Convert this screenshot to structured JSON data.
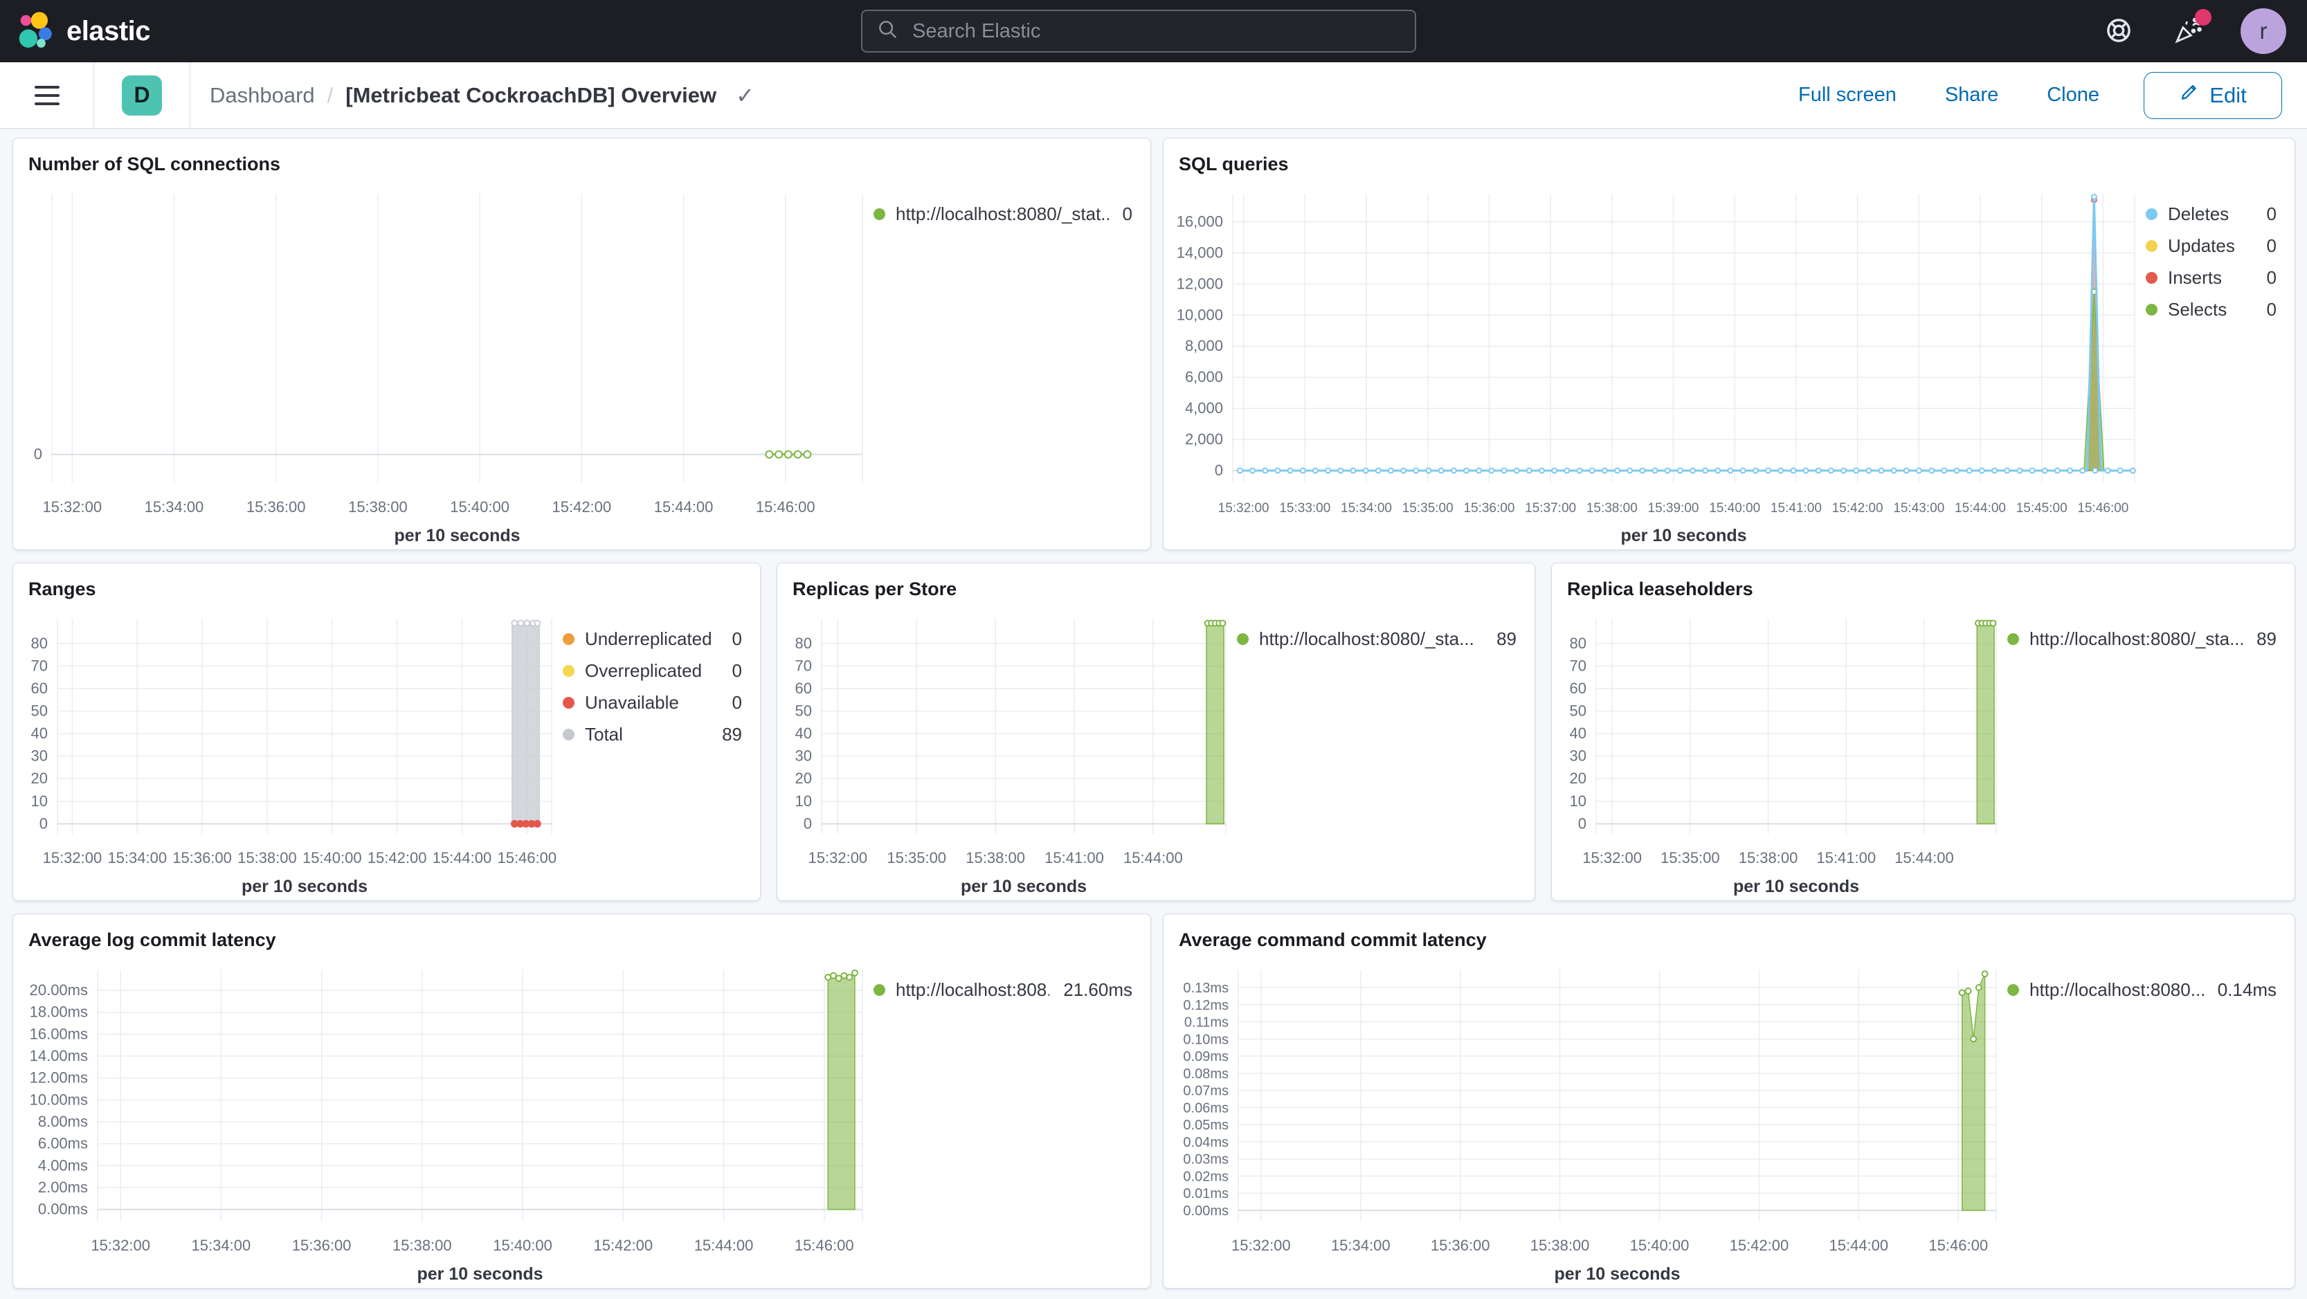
{
  "header": {
    "brand": "elastic",
    "search_placeholder": "Search Elastic",
    "avatar_initial": "r"
  },
  "toolbar": {
    "app_badge": "D",
    "breadcrumb_parent": "Dashboard",
    "breadcrumb_separator": "/",
    "title": "[Metricbeat CockroachDB] Overview",
    "title_check": "✓",
    "full_screen": "Full screen",
    "share": "Share",
    "clone": "Clone",
    "edit": "Edit"
  },
  "colors": {
    "accent_blue": "#006BB4",
    "header_bg": "#1D1E24",
    "panel_border": "#D3DAE6",
    "page_bg": "#F5F7FA",
    "badge_teal": "#4EC3B2",
    "notification_pink": "#E0366B",
    "avatar_purple": "#BBA3DD",
    "series_green": "#7DB642",
    "series_blue": "#7DC9F0",
    "series_yellow": "#F1D34F",
    "series_red": "#E25B4C",
    "series_orange": "#EF9E3D",
    "series_gray": "#C9CDD3"
  },
  "chart_data": [
    {
      "id": "sql-connections",
      "type": "line",
      "title": "Number of SQL connections",
      "xlabel": "per 10 seconds",
      "x_ticks": [
        "15:32:00",
        "15:34:00",
        "15:36:00",
        "15:38:00",
        "15:40:00",
        "15:42:00",
        "15:44:00",
        "15:46:00"
      ],
      "x_tick_span": [
        0.025,
        0.905
      ],
      "y_ticks": [
        {
          "v": 0,
          "label": "0"
        }
      ],
      "ylim": [
        -0.11,
        1
      ],
      "h_grid": false,
      "margin_left": 56,
      "legend_position": "right",
      "legend": [
        {
          "label": "http://localhost:8080/_stat...",
          "value": "0",
          "color": "#7DB642"
        }
      ],
      "series": [
        {
          "name": "http://localhost:8080/_stat...",
          "kind": "line",
          "color": "#7DB642",
          "width": 2.5,
          "points": [
            [
              0.885,
              0
            ],
            [
              0.932,
              0
            ]
          ],
          "marker_range": [
            0.885,
            0.932,
            5
          ],
          "marker_r": 5
        }
      ]
    },
    {
      "id": "sql-queries",
      "type": "line",
      "title": "SQL queries",
      "xlabel": "per 10 seconds",
      "x_ticks": [
        "15:32:00",
        "15:33:00",
        "15:34:00",
        "15:35:00",
        "15:36:00",
        "15:37:00",
        "15:38:00",
        "15:39:00",
        "15:40:00",
        "15:41:00",
        "15:42:00",
        "15:43:00",
        "15:44:00",
        "15:45:00",
        "15:46:00"
      ],
      "x_tick_span": [
        0.012,
        0.965
      ],
      "x_tick_font": 19,
      "y_ticks": [
        {
          "v": 0,
          "label": "0"
        },
        {
          "v": 2000,
          "label": "2,000"
        },
        {
          "v": 4000,
          "label": "4,000"
        },
        {
          "v": 6000,
          "label": "6,000"
        },
        {
          "v": 8000,
          "label": "8,000"
        },
        {
          "v": 10000,
          "label": "10,000"
        },
        {
          "v": 12000,
          "label": "12,000"
        },
        {
          "v": 14000,
          "label": "14,000"
        },
        {
          "v": 16000,
          "label": "16,000"
        }
      ],
      "ylim": [
        -800,
        17800
      ],
      "h_grid": true,
      "margin_left": 100,
      "legend_position": "right",
      "legend": [
        {
          "label": "Deletes",
          "value": "0",
          "color": "#7DC9F0"
        },
        {
          "label": "Updates",
          "value": "0",
          "color": "#F1D34F"
        },
        {
          "label": "Inserts",
          "value": "0",
          "color": "#E25B4C"
        },
        {
          "label": "Selects",
          "value": "0",
          "color": "#7DB642"
        }
      ],
      "series": [
        {
          "name": "Updates",
          "kind": "line",
          "color": "#F1D34F",
          "width": 2,
          "points": [
            [
              0.008,
              0
            ],
            [
              0.998,
              0
            ]
          ]
        },
        {
          "name": "Inserts",
          "kind": "area",
          "color": "#E25B4C",
          "fill_opacity": 0.5,
          "points": [
            [
              0.9475,
              0
            ],
            [
              0.955,
              17400
            ],
            [
              0.9625,
              0
            ]
          ],
          "marker_points": [
            [
              0.955,
              17400
            ]
          ],
          "marker_r": 3.5
        },
        {
          "name": "Selects",
          "kind": "area",
          "color": "#7DB642",
          "fill_opacity": 0.6,
          "points": [
            [
              0.944,
              0
            ],
            [
              0.955,
              11500
            ],
            [
              0.966,
              0
            ]
          ],
          "marker_points": [
            [
              0.955,
              11500
            ]
          ],
          "marker_r": 4
        },
        {
          "name": "Deletes",
          "kind": "line",
          "color": "#7DC9F0",
          "width": 3,
          "points": [
            [
              0.008,
              0
            ],
            [
              0.9475,
              0
            ],
            [
              0.955,
              17600
            ],
            [
              0.9625,
              0
            ],
            [
              0.998,
              0
            ]
          ],
          "marker_range": [
            0.008,
            0.998,
            72
          ],
          "marker_points": [
            [
              0.955,
              17600
            ]
          ],
          "marker_r": 3.5
        }
      ]
    },
    {
      "id": "ranges",
      "type": "line",
      "title": "Ranges",
      "xlabel": "per 10 seconds",
      "x_ticks": [
        "15:32:00",
        "15:34:00",
        "15:36:00",
        "15:38:00",
        "15:40:00",
        "15:42:00",
        "15:44:00",
        "15:46:00"
      ],
      "x_tick_span": [
        0.03,
        0.95
      ],
      "y_ticks": [
        {
          "v": 0,
          "label": "0"
        },
        {
          "v": 10,
          "label": "10"
        },
        {
          "v": 20,
          "label": "20"
        },
        {
          "v": 30,
          "label": "30"
        },
        {
          "v": 40,
          "label": "40"
        },
        {
          "v": 50,
          "label": "50"
        },
        {
          "v": 60,
          "label": "60"
        },
        {
          "v": 70,
          "label": "70"
        },
        {
          "v": 80,
          "label": "80"
        }
      ],
      "ylim": [
        -4.5,
        91
      ],
      "h_grid": true,
      "margin_left": 64,
      "legend_position": "right",
      "legend": [
        {
          "label": "Underreplicated",
          "value": "0",
          "color": "#EF9E3D"
        },
        {
          "label": "Overreplicated",
          "value": "0",
          "color": "#F2D64B"
        },
        {
          "label": "Unavailable",
          "value": "0",
          "color": "#E4584B"
        },
        {
          "label": "Total",
          "value": "89",
          "color": "#C6CAD0"
        }
      ],
      "series": [
        {
          "name": "Total",
          "kind": "area",
          "color": "#C9CDD3",
          "fill_opacity": 0.8,
          "points": [
            [
              0.92,
              89
            ],
            [
              0.975,
              89
            ]
          ],
          "marker_points": [
            [
              0.925,
              89
            ],
            [
              0.9375,
              89
            ],
            [
              0.95,
              89
            ],
            [
              0.9625,
              89
            ],
            [
              0.971,
              89
            ]
          ],
          "marker_r": 4
        },
        {
          "name": "Unavailable",
          "kind": "dots",
          "color": "#E4584B",
          "r": 5.5,
          "points": [
            [
              0.925,
              0
            ],
            [
              0.9365,
              0
            ],
            [
              0.948,
              0
            ],
            [
              0.9595,
              0
            ],
            [
              0.971,
              0
            ]
          ]
        }
      ]
    },
    {
      "id": "replicas-per-store",
      "type": "line",
      "title": "Replicas per Store",
      "xlabel": "per 10 seconds",
      "x_ticks": [
        "15:32:00",
        "15:35:00",
        "15:38:00",
        "15:41:00",
        "15:44:00"
      ],
      "x_tick_span": [
        0.04,
        0.82
      ],
      "y_ticks": [
        {
          "v": 0,
          "label": "0"
        },
        {
          "v": 10,
          "label": "10"
        },
        {
          "v": 20,
          "label": "20"
        },
        {
          "v": 30,
          "label": "30"
        },
        {
          "v": 40,
          "label": "40"
        },
        {
          "v": 50,
          "label": "50"
        },
        {
          "v": 60,
          "label": "60"
        },
        {
          "v": 70,
          "label": "70"
        },
        {
          "v": 80,
          "label": "80"
        }
      ],
      "ylim": [
        -4.5,
        91
      ],
      "h_grid": true,
      "margin_left": 64,
      "legend_position": "right",
      "legend": [
        {
          "label": "http://localhost:8080/_sta...",
          "value": "89",
          "color": "#7DB642"
        }
      ],
      "series": [
        {
          "name": "http://localhost:8080/_sta...",
          "kind": "area",
          "color": "#7DB642",
          "fill_opacity": 0.55,
          "points": [
            [
              0.952,
              89
            ],
            [
              0.995,
              89
            ]
          ],
          "marker_points": [
            [
              0.955,
              89
            ],
            [
              0.9645,
              89
            ],
            [
              0.974,
              89
            ],
            [
              0.9835,
              89
            ],
            [
              0.992,
              89
            ]
          ],
          "marker_r": 4
        }
      ]
    },
    {
      "id": "replica-leaseholders",
      "type": "line",
      "title": "Replica leaseholders",
      "xlabel": "per 10 seconds",
      "x_ticks": [
        "15:32:00",
        "15:35:00",
        "15:38:00",
        "15:41:00",
        "15:44:00"
      ],
      "x_tick_span": [
        0.04,
        0.82
      ],
      "y_ticks": [
        {
          "v": 0,
          "label": "0"
        },
        {
          "v": 10,
          "label": "10"
        },
        {
          "v": 20,
          "label": "20"
        },
        {
          "v": 30,
          "label": "30"
        },
        {
          "v": 40,
          "label": "40"
        },
        {
          "v": 50,
          "label": "50"
        },
        {
          "v": 60,
          "label": "60"
        },
        {
          "v": 70,
          "label": "70"
        },
        {
          "v": 80,
          "label": "80"
        }
      ],
      "ylim": [
        -4.5,
        91
      ],
      "h_grid": true,
      "margin_left": 64,
      "legend_position": "right",
      "legend": [
        {
          "label": "http://localhost:8080/_sta...",
          "value": "89",
          "color": "#7DB642"
        }
      ],
      "series": [
        {
          "name": "http://localhost:8080/_sta...",
          "kind": "area",
          "color": "#7DB642",
          "fill_opacity": 0.55,
          "points": [
            [
              0.952,
              89
            ],
            [
              0.995,
              89
            ]
          ],
          "marker_points": [
            [
              0.955,
              89
            ],
            [
              0.9645,
              89
            ],
            [
              0.974,
              89
            ],
            [
              0.9835,
              89
            ],
            [
              0.992,
              89
            ]
          ],
          "marker_r": 4
        }
      ]
    },
    {
      "id": "avg-log-commit-latency",
      "type": "area",
      "title": "Average log commit latency",
      "xlabel": "per 10 seconds",
      "x_ticks": [
        "15:32:00",
        "15:34:00",
        "15:36:00",
        "15:38:00",
        "15:40:00",
        "15:42:00",
        "15:44:00",
        "15:46:00"
      ],
      "x_tick_span": [
        0.03,
        0.95
      ],
      "y_ticks": [
        {
          "v": 0,
          "label": "0.00ms"
        },
        {
          "v": 2,
          "label": "2.00ms"
        },
        {
          "v": 4,
          "label": "4.00ms"
        },
        {
          "v": 6,
          "label": "6.00ms"
        },
        {
          "v": 8,
          "label": "8.00ms"
        },
        {
          "v": 10,
          "label": "10.00ms"
        },
        {
          "v": 12,
          "label": "12.00ms"
        },
        {
          "v": 14,
          "label": "14.00ms"
        },
        {
          "v": 16,
          "label": "16.00ms"
        },
        {
          "v": 18,
          "label": "18.00ms"
        },
        {
          "v": 20,
          "label": "20.00ms"
        }
      ],
      "ylim": [
        -1.1,
        21.9
      ],
      "h_grid": true,
      "margin_left": 122,
      "legend_position": "right",
      "legend": [
        {
          "label": "http://localhost:808...",
          "value": "21.60ms",
          "color": "#7DB642"
        }
      ],
      "series": [
        {
          "name": "http://localhost:808...",
          "kind": "area",
          "color": "#7DB642",
          "fill_opacity": 0.55,
          "points": [
            [
              0.955,
              21.2
            ],
            [
              0.962,
              21.35
            ],
            [
              0.969,
              21.1
            ],
            [
              0.976,
              21.35
            ],
            [
              0.983,
              21.2
            ],
            [
              0.99,
              21.6
            ]
          ],
          "markers": true,
          "marker_r": 4
        }
      ]
    },
    {
      "id": "avg-command-commit-latency",
      "type": "area",
      "title": "Average command commit latency",
      "xlabel": "per 10 seconds",
      "x_ticks": [
        "15:32:00",
        "15:34:00",
        "15:36:00",
        "15:38:00",
        "15:40:00",
        "15:42:00",
        "15:44:00",
        "15:46:00"
      ],
      "x_tick_span": [
        0.03,
        0.95
      ],
      "y_tick_font": 20,
      "y_ticks": [
        {
          "v": 0,
          "label": "0.00ms"
        },
        {
          "v": 0.01,
          "label": "0.01ms"
        },
        {
          "v": 0.02,
          "label": "0.02ms"
        },
        {
          "v": 0.03,
          "label": "0.03ms"
        },
        {
          "v": 0.04,
          "label": "0.04ms"
        },
        {
          "v": 0.05,
          "label": "0.05ms"
        },
        {
          "v": 0.06,
          "label": "0.06ms"
        },
        {
          "v": 0.07,
          "label": "0.07ms"
        },
        {
          "v": 0.08,
          "label": "0.08ms"
        },
        {
          "v": 0.09,
          "label": "0.09ms"
        },
        {
          "v": 0.1,
          "label": "0.10ms"
        },
        {
          "v": 0.11,
          "label": "0.11ms"
        },
        {
          "v": 0.12,
          "label": "0.12ms"
        },
        {
          "v": 0.13,
          "label": "0.13ms"
        }
      ],
      "ylim": [
        -0.0065,
        0.1405
      ],
      "h_grid": true,
      "margin_left": 108,
      "legend_position": "right",
      "legend": [
        {
          "label": "http://localhost:8080...",
          "value": "0.14ms",
          "color": "#7DB642"
        }
      ],
      "series": [
        {
          "name": "http://localhost:8080...",
          "kind": "area",
          "color": "#7DB642",
          "fill_opacity": 0.55,
          "points": [
            [
              0.955,
              0.127
            ],
            [
              0.963,
              0.128
            ],
            [
              0.97,
              0.1
            ],
            [
              0.977,
              0.13
            ],
            [
              0.985,
              0.138
            ]
          ],
          "markers": true,
          "marker_r": 4
        }
      ]
    }
  ]
}
